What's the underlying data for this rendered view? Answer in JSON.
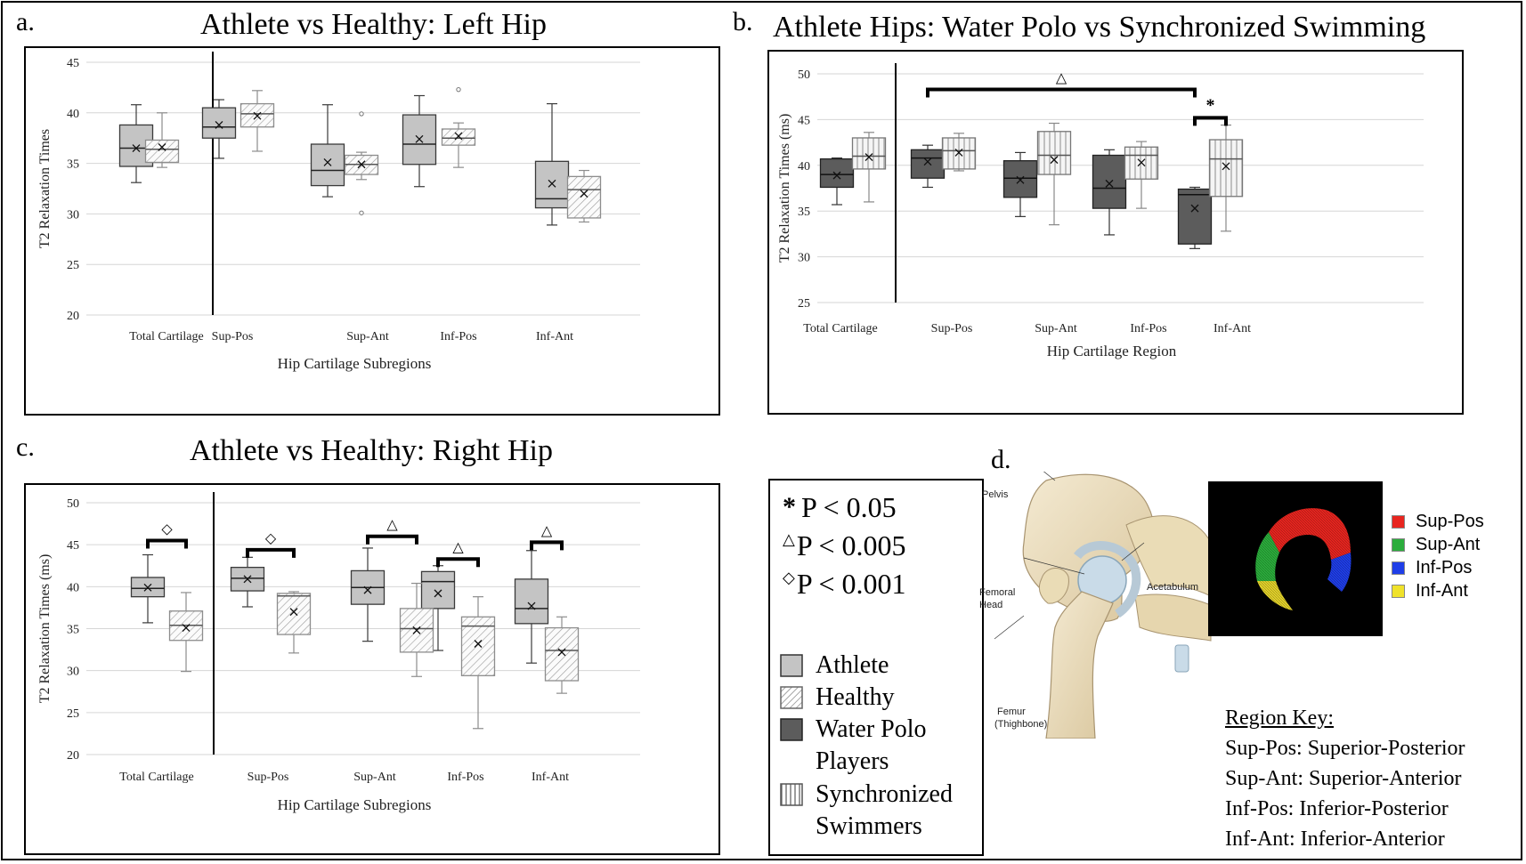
{
  "chart_data": [
    {
      "panel": "a.",
      "type": "box",
      "title": "Athlete vs Healthy: Left Hip",
      "xlabel": "Hip Cartilage Subregions",
      "ylabel": "T2 Relaxation Times",
      "ylim": [
        20,
        45
      ],
      "yticks": [
        20,
        25,
        30,
        35,
        40,
        45
      ],
      "grid": true,
      "categories": [
        "Total Cartilage",
        "Sup-Pos",
        "Sup-Ant",
        "Inf-Pos",
        "Inf-Ant"
      ],
      "series": [
        {
          "name": "Athlete",
          "boxes": [
            {
              "min": 33.1,
              "q1": 34.7,
              "median": 36.5,
              "q3": 38.8,
              "max": 40.8,
              "mean": 36.5,
              "outliers": []
            },
            {
              "min": 35.5,
              "q1": 37.5,
              "median": 38.6,
              "q3": 40.5,
              "max": 41.3,
              "mean": 38.8,
              "outliers": []
            },
            {
              "min": 31.7,
              "q1": 32.8,
              "median": 34.3,
              "q3": 36.9,
              "max": 40.8,
              "mean": 35.1,
              "outliers": []
            },
            {
              "min": 32.7,
              "q1": 34.9,
              "median": 36.9,
              "q3": 39.8,
              "max": 41.7,
              "mean": 37.4,
              "outliers": []
            },
            {
              "min": 28.9,
              "q1": 30.6,
              "median": 31.5,
              "q3": 35.2,
              "max": 40.9,
              "mean": 33.0,
              "outliers": []
            }
          ]
        },
        {
          "name": "Healthy",
          "boxes": [
            {
              "min": 34.6,
              "q1": 35.1,
              "median": 36.4,
              "q3": 37.3,
              "max": 40.0,
              "mean": 36.6,
              "outliers": []
            },
            {
              "min": 36.2,
              "q1": 38.6,
              "median": 39.9,
              "q3": 40.9,
              "max": 42.2,
              "mean": 39.7,
              "outliers": []
            },
            {
              "min": 33.4,
              "q1": 33.9,
              "median": 34.9,
              "q3": 35.8,
              "max": 36.1,
              "mean": 34.9,
              "outliers": [
                39.9,
                30.1
              ]
            },
            {
              "min": 34.6,
              "q1": 36.8,
              "median": 37.5,
              "q3": 38.4,
              "max": 39.0,
              "mean": 37.7,
              "outliers": [
                42.3
              ]
            },
            {
              "min": 29.2,
              "q1": 29.6,
              "median": 32.4,
              "q3": 33.7,
              "max": 34.3,
              "mean": 32.0,
              "outliers": []
            }
          ]
        }
      ],
      "annotations": []
    },
    {
      "panel": "b.",
      "type": "box",
      "title": "Athlete Hips: Water Polo vs Synchronized Swimming",
      "xlabel": "Hip Cartilage Region",
      "ylabel": "T2 Relaxation Times (ms)",
      "ylim": [
        25,
        50
      ],
      "yticks": [
        25,
        30,
        35,
        40,
        45,
        50
      ],
      "grid": true,
      "categories": [
        "Total Cartilage",
        "Sup-Pos",
        "Sup-Ant",
        "Inf-Pos",
        "Inf-Ant"
      ],
      "series": [
        {
          "name": "Water Polo Players",
          "boxes": [
            {
              "min": 35.7,
              "q1": 37.6,
              "median": 39.0,
              "q3": 40.7,
              "max": 40.8,
              "mean": 38.9,
              "outliers": []
            },
            {
              "min": 37.6,
              "q1": 38.6,
              "median": 40.8,
              "q3": 41.7,
              "max": 42.2,
              "mean": 40.4,
              "outliers": []
            },
            {
              "min": 34.4,
              "q1": 36.5,
              "median": 38.6,
              "q3": 40.5,
              "max": 41.4,
              "mean": 38.4,
              "outliers": []
            },
            {
              "min": 32.4,
              "q1": 35.3,
              "median": 37.5,
              "q3": 41.1,
              "max": 41.7,
              "mean": 38.0,
              "outliers": []
            },
            {
              "min": 30.9,
              "q1": 31.4,
              "median": 36.8,
              "q3": 37.4,
              "max": 37.6,
              "mean": 35.3,
              "outliers": []
            }
          ]
        },
        {
          "name": "Synchronized Swimmers",
          "boxes": [
            {
              "min": 36.0,
              "q1": 39.6,
              "median": 41.0,
              "q3": 43.0,
              "max": 43.6,
              "mean": 40.9,
              "outliers": []
            },
            {
              "min": 39.4,
              "q1": 39.6,
              "median": 41.6,
              "q3": 43.0,
              "max": 43.5,
              "mean": 41.4,
              "outliers": []
            },
            {
              "min": 33.5,
              "q1": 39.0,
              "median": 41.1,
              "q3": 43.7,
              "max": 44.6,
              "mean": 40.6,
              "outliers": []
            },
            {
              "min": 35.3,
              "q1": 38.5,
              "median": 41.1,
              "q3": 42.0,
              "max": 42.6,
              "mean": 40.3,
              "outliers": []
            },
            {
              "min": 32.8,
              "q1": 36.6,
              "median": 40.7,
              "q3": 42.8,
              "max": 44.4,
              "mean": 39.9,
              "outliers": []
            }
          ]
        }
      ],
      "annotations": [
        {
          "symbol": "△",
          "from": "Sup-Pos",
          "to": "Inf-Ant",
          "level": 48.3
        },
        {
          "symbol": "*",
          "category": "Inf-Ant",
          "level": 45.2
        }
      ]
    },
    {
      "panel": "c.",
      "type": "box",
      "title": "Athlete vs Healthy: Right Hip",
      "xlabel": "Hip Cartilage Subregions",
      "ylabel": "T2 Relaxation Times (ms)",
      "ylim": [
        20,
        50
      ],
      "yticks": [
        20,
        25,
        30,
        35,
        40,
        45,
        50
      ],
      "grid": true,
      "categories": [
        "Total Cartilage",
        "Sup-Pos",
        "Sup-Ant",
        "Inf-Pos",
        "Inf-Ant"
      ],
      "series": [
        {
          "name": "Athlete",
          "boxes": [
            {
              "min": 35.7,
              "q1": 38.8,
              "median": 39.8,
              "q3": 41.1,
              "max": 43.8,
              "mean": 39.9,
              "outliers": []
            },
            {
              "min": 37.6,
              "q1": 39.5,
              "median": 41.0,
              "q3": 42.3,
              "max": 43.5,
              "mean": 40.9,
              "outliers": []
            },
            {
              "min": 33.5,
              "q1": 37.9,
              "median": 39.9,
              "q3": 41.9,
              "max": 44.6,
              "mean": 39.6,
              "outliers": []
            },
            {
              "min": 32.4,
              "q1": 37.4,
              "median": 40.6,
              "q3": 41.8,
              "max": 42.5,
              "mean": 39.2,
              "outliers": []
            },
            {
              "min": 30.9,
              "q1": 35.6,
              "median": 37.4,
              "q3": 40.9,
              "max": 44.3,
              "mean": 37.7,
              "outliers": []
            }
          ]
        },
        {
          "name": "Healthy",
          "boxes": [
            {
              "min": 29.9,
              "q1": 33.6,
              "median": 35.4,
              "q3": 37.1,
              "max": 39.3,
              "mean": 35.1,
              "outliers": []
            },
            {
              "min": 32.1,
              "q1": 34.3,
              "median": 38.9,
              "q3": 39.2,
              "max": 39.4,
              "mean": 37.0,
              "outliers": []
            },
            {
              "min": 29.3,
              "q1": 32.2,
              "median": 35.0,
              "q3": 37.4,
              "max": 40.4,
              "mean": 34.8,
              "outliers": []
            },
            {
              "min": 23.1,
              "q1": 29.4,
              "median": 35.3,
              "q3": 36.4,
              "max": 38.8,
              "mean": 33.2,
              "outliers": []
            },
            {
              "min": 27.3,
              "q1": 28.8,
              "median": 32.4,
              "q3": 35.1,
              "max": 36.4,
              "mean": 32.2,
              "outliers": []
            }
          ]
        }
      ],
      "annotations": [
        {
          "symbol": "◇",
          "category": "Total Cartilage",
          "level": 45.5
        },
        {
          "symbol": "◇",
          "category": "Sup-Pos",
          "level": 44.4
        },
        {
          "symbol": "△",
          "category": "Sup-Ant",
          "level": 46.0
        },
        {
          "symbol": "△",
          "category": "Inf-Pos",
          "level": 43.3
        },
        {
          "symbol": "△",
          "category": "Inf-Ant",
          "level": 45.3
        }
      ]
    }
  ],
  "panels": {
    "a": {
      "letter": "a.",
      "title": "Athlete vs Healthy: Left Hip"
    },
    "b": {
      "letter": "b.",
      "title": "Athlete Hips: Water Polo vs Synchronized Swimming"
    },
    "c": {
      "letter": "c.",
      "title": "Athlete vs Healthy: Right Hip"
    },
    "d": {
      "letter": "d."
    }
  },
  "significance_legend": [
    {
      "symbol": "*",
      "text": "P < 0.05"
    },
    {
      "symbol": "△",
      "text": "P < 0.005"
    },
    {
      "symbol": "◇",
      "text": "P < 0.001"
    }
  ],
  "group_legend": [
    {
      "pattern": "athlete",
      "lines": [
        "Athlete"
      ]
    },
    {
      "pattern": "healthy",
      "lines": [
        "Healthy"
      ]
    },
    {
      "pattern": "waterpolo",
      "lines": [
        "Water Polo",
        "Players"
      ]
    },
    {
      "pattern": "sync",
      "lines": [
        "Synchronized",
        "Swimmers"
      ]
    }
  ],
  "anatomy": {
    "labels": [
      "Pelvis",
      "Femoral",
      "Head",
      "Acetabulum",
      "Femur",
      "(Thighbone)"
    ]
  },
  "region_colors": [
    {
      "label": "Sup-Pos",
      "color": "#e8251f"
    },
    {
      "label": "Sup-Ant",
      "color": "#2bad3c"
    },
    {
      "label": "Inf-Pos",
      "color": "#1f3ee8"
    },
    {
      "label": "Inf-Ant",
      "color": "#f0e22a"
    }
  ],
  "region_key": {
    "heading": "Region Key:",
    "entries": [
      "Sup-Pos: Superior-Posterior",
      "Sup-Ant: Superior-Anterior",
      "Inf-Pos: Inferior-Posterior",
      "Inf-Ant: Inferior-Anterior"
    ]
  }
}
